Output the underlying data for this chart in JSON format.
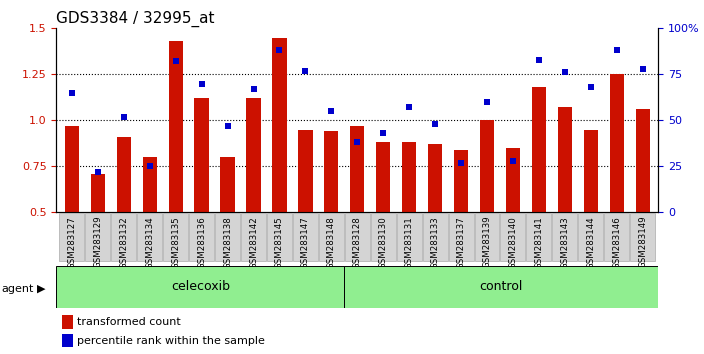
{
  "title": "GDS3384 / 32995_at",
  "categories": [
    "GSM283127",
    "GSM283129",
    "GSM283132",
    "GSM283134",
    "GSM283135",
    "GSM283136",
    "GSM283138",
    "GSM283142",
    "GSM283145",
    "GSM283147",
    "GSM283148",
    "GSM283128",
    "GSM283130",
    "GSM283131",
    "GSM283133",
    "GSM283137",
    "GSM283139",
    "GSM283140",
    "GSM283141",
    "GSM283143",
    "GSM283144",
    "GSM283146",
    "GSM283149"
  ],
  "bar_values": [
    0.97,
    0.71,
    0.91,
    0.8,
    1.43,
    1.12,
    0.8,
    1.12,
    1.45,
    0.95,
    0.94,
    0.97,
    0.88,
    0.88,
    0.87,
    0.84,
    1.0,
    0.85,
    1.18,
    1.07,
    0.95,
    1.25,
    1.06
  ],
  "percentile_values": [
    65,
    22,
    52,
    25,
    82,
    70,
    47,
    67,
    88,
    77,
    55,
    38,
    43,
    57,
    48,
    27,
    60,
    28,
    83,
    76,
    68,
    88,
    78
  ],
  "celecoxib_count": 11,
  "control_count": 12,
  "bar_color": "#cc1100",
  "percentile_color": "#0000cc",
  "agent_label": "agent",
  "celecoxib_label": "celecoxib",
  "control_label": "control",
  "legend_bar_label": "transformed count",
  "legend_pct_label": "percentile rank within the sample",
  "ylim_left": [
    0.5,
    1.5
  ],
  "ylim_right": [
    0,
    100
  ],
  "yticks_left": [
    0.5,
    0.75,
    1.0,
    1.25,
    1.5
  ],
  "yticks_right": [
    0,
    25,
    50,
    75,
    100
  ],
  "ytick_labels_right": [
    "0",
    "25",
    "50",
    "75",
    "100%"
  ],
  "gridlines": [
    0.75,
    1.0,
    1.25
  ]
}
